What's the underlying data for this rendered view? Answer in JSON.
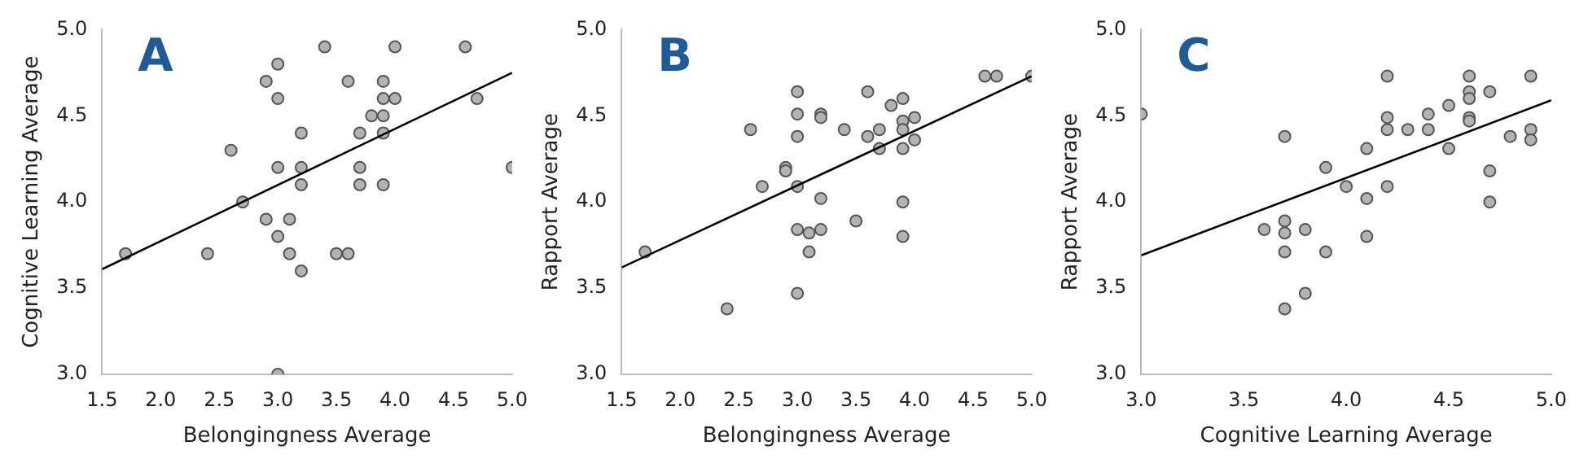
{
  "chart_data": [
    {
      "type": "scatter",
      "xlabel": "Belongingness Average",
      "ylabel": "Cognitive Learning Average",
      "annotations": [
        "A"
      ],
      "xlim": [
        1.5,
        5.0
      ],
      "ylim": [
        3.0,
        5.0
      ],
      "xticks": [
        1.5,
        {
          "value": 2,
          "label": "2.0"
        },
        2.5,
        {
          "value": 3,
          "label": "3.0"
        },
        3.5,
        {
          "value": 4,
          "label": "4.0"
        },
        4.5,
        {
          "value": 5,
          "label": "5.0"
        }
      ],
      "yticks": [
        {
          "value": 3,
          "label": "3.0"
        },
        {
          "value": 3.5,
          "label": "3.5"
        },
        {
          "value": 4,
          "label": "4.0"
        },
        {
          "value": 4.5,
          "label": "4.5"
        },
        {
          "value": 5,
          "label": "5.0"
        }
      ],
      "series": [
        {
          "type": "scatter",
          "marker": "circle",
          "color": "#b3b3b3",
          "x": [
            1.7,
            2.4,
            2.6,
            2.7,
            2.9,
            2.9,
            3.0,
            3.0,
            3.0,
            3.0,
            3.0,
            3.1,
            3.1,
            3.2,
            3.2,
            3.2,
            3.2,
            3.4,
            3.5,
            3.6,
            3.6,
            3.7,
            3.7,
            3.7,
            3.8,
            3.9,
            3.9,
            3.9,
            4.0,
            3.9,
            3.9,
            4.0,
            4.6,
            4.7,
            5.0
          ],
          "values": [
            3.7,
            3.7,
            4.3,
            4.0,
            3.9,
            4.7,
            4.8,
            4.6,
            4.2,
            3.8,
            3.0,
            3.9,
            3.7,
            4.4,
            4.2,
            4.1,
            3.6,
            4.9,
            3.7,
            3.7,
            4.7,
            4.4,
            4.2,
            4.1,
            4.5,
            4.5,
            4.7,
            4.6,
            4.6,
            4.4,
            4.1,
            4.9,
            4.9,
            4.6,
            4.2
          ]
        },
        {
          "type": "line",
          "color": "#000000",
          "x": [
            1.5,
            5.0
          ],
          "values": [
            3.61,
            4.75
          ]
        }
      ]
    },
    {
      "type": "scatter",
      "xlabel": "Belongingness Average",
      "ylabel": "Rapport Average",
      "annotations": [
        "B"
      ],
      "xlim": [
        1.5,
        5.0
      ],
      "ylim": [
        3.0,
        5.0
      ],
      "xticks": [
        1.5,
        {
          "value": 2,
          "label": "2.0"
        },
        2.5,
        {
          "value": 3,
          "label": "3.0"
        },
        3.5,
        {
          "value": 4,
          "label": "4.0"
        },
        4.5,
        {
          "value": 5,
          "label": "5.0"
        }
      ],
      "yticks": [
        {
          "value": 3,
          "label": "3.0"
        },
        {
          "value": 3.5,
          "label": "3.5"
        },
        {
          "value": 4,
          "label": "4.0"
        },
        {
          "value": 4.5,
          "label": "4.5"
        },
        {
          "value": 5,
          "label": "5.0"
        }
      ],
      "series": [
        {
          "type": "scatter",
          "marker": "circle",
          "color": "#b3b3b3",
          "x": [
            1.7,
            2.4,
            2.6,
            2.7,
            2.9,
            2.9,
            3.0,
            3.0,
            3.0,
            3.0,
            3.0,
            3.0,
            3.1,
            3.1,
            3.2,
            3.2,
            3.2,
            3.2,
            3.4,
            3.5,
            3.6,
            3.6,
            3.7,
            3.7,
            3.8,
            3.9,
            3.9,
            3.9,
            3.9,
            3.9,
            3.9,
            4.0,
            4.0,
            4.6,
            4.7,
            5.0
          ],
          "values": [
            3.71,
            3.38,
            4.42,
            4.09,
            4.2,
            4.18,
            4.64,
            4.51,
            4.38,
            4.09,
            3.84,
            3.47,
            3.82,
            3.71,
            4.51,
            4.49,
            4.02,
            3.84,
            4.42,
            3.89,
            4.64,
            4.38,
            4.42,
            4.31,
            4.56,
            4.6,
            4.47,
            4.42,
            4.31,
            4.0,
            3.8,
            4.49,
            4.36,
            4.73,
            4.73,
            4.73
          ]
        },
        {
          "type": "line",
          "color": "#000000",
          "x": [
            1.5,
            5.0
          ],
          "values": [
            3.62,
            4.73
          ]
        }
      ]
    },
    {
      "type": "scatter",
      "xlabel": "Cognitive Learning Average",
      "ylabel": "Rapport Average",
      "annotations": [
        "C"
      ],
      "xlim": [
        3.0,
        5.0
      ],
      "ylim": [
        3.0,
        5.0
      ],
      "xticks": [
        {
          "value": 3,
          "label": "3.0"
        },
        3.5,
        {
          "value": 4,
          "label": "4.0"
        },
        4.5,
        {
          "value": 5,
          "label": "5.0"
        }
      ],
      "yticks": [
        {
          "value": 3,
          "label": "3.0"
        },
        {
          "value": 3.5,
          "label": "3.5"
        },
        {
          "value": 4,
          "label": "4.0"
        },
        {
          "value": 4.5,
          "label": "4.5"
        },
        {
          "value": 5,
          "label": "5.0"
        }
      ],
      "series": [
        {
          "type": "scatter",
          "marker": "circle",
          "color": "#b3b3b3",
          "x": [
            3.0,
            3.6,
            3.7,
            3.7,
            3.7,
            3.7,
            3.7,
            3.8,
            3.8,
            3.9,
            3.9,
            4.0,
            4.1,
            4.1,
            4.1,
            4.2,
            4.2,
            4.2,
            4.2,
            4.3,
            4.4,
            4.4,
            4.5,
            4.5,
            4.6,
            4.6,
            4.6,
            4.6,
            4.6,
            4.7,
            4.7,
            4.7,
            4.8,
            4.9,
            4.9,
            4.9
          ],
          "values": [
            4.51,
            3.84,
            4.38,
            3.89,
            3.82,
            3.71,
            3.38,
            3.84,
            3.47,
            4.2,
            3.71,
            4.09,
            4.31,
            4.02,
            3.8,
            4.73,
            4.49,
            4.42,
            4.09,
            4.42,
            4.51,
            4.42,
            4.56,
            4.31,
            4.73,
            4.64,
            4.6,
            4.49,
            4.47,
            4.64,
            4.18,
            4.0,
            4.38,
            4.73,
            4.42,
            4.36
          ]
        },
        {
          "type": "line",
          "color": "#000000",
          "x": [
            3.0,
            5.0
          ],
          "values": [
            3.69,
            4.59
          ]
        }
      ]
    }
  ]
}
